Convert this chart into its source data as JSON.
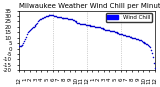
{
  "title": "Milwaukee Weather Wind Chill per Minute (24 Hours)",
  "background_color": "#ffffff",
  "plot_bg_color": "#ffffff",
  "line_color": "#0000cc",
  "legend_color": "#0000ff",
  "y_values": [
    2,
    2,
    2.5,
    3,
    3.5,
    5,
    7,
    9,
    11,
    13,
    15,
    16,
    17,
    18,
    19,
    19.5,
    20,
    21,
    22,
    23,
    24,
    25,
    26,
    27,
    27.5,
    28,
    28.5,
    29,
    29.5,
    29.8,
    30,
    30.2,
    30.5,
    30.5,
    30.5,
    30.5,
    30.5,
    30.5,
    30.2,
    30,
    29.8,
    29.5,
    29.5,
    29.3,
    29,
    28.8,
    28.5,
    28.5,
    28.3,
    28,
    28,
    28,
    27.8,
    27.5,
    27.5,
    27.3,
    27,
    27,
    26.5,
    26,
    25.5,
    25,
    24.5,
    24,
    23.8,
    23.5,
    23,
    23,
    22.8,
    22.5,
    22.5,
    22.3,
    22,
    21.8,
    21.5,
    21.5,
    21.3,
    21,
    21,
    20.8,
    20.5,
    20.5,
    20,
    20,
    20,
    20,
    19.5,
    19.5,
    19,
    18.5,
    18.5,
    18,
    17.8,
    17.5,
    17.5,
    17.3,
    17,
    16.8,
    16.5,
    16.5,
    16.3,
    16,
    15.8,
    15.5,
    15,
    14.8,
    14.5,
    14,
    13.8,
    13.5,
    13.3,
    13,
    12.8,
    12.5,
    12.5,
    12,
    11.8,
    11.5,
    11.3,
    11,
    10.8,
    10.5,
    10,
    9.8,
    9.5,
    9.3,
    9,
    8.8,
    8.5,
    8.2,
    8,
    7.5,
    7,
    6.5,
    6,
    5.5,
    5,
    4.5,
    4,
    3,
    2,
    1,
    -1,
    -4,
    -8,
    -13,
    -18
  ],
  "ylim": [
    -20,
    35
  ],
  "xlim": [
    0,
    1440
  ],
  "vline_positions": [
    360,
    720,
    1080
  ],
  "tick_fontsize": 4,
  "title_fontsize": 5,
  "marker_size": 1.2,
  "legend_label": "Wind Chill",
  "x_tick_labels": [
    "12",
    "1",
    "2",
    "3",
    "4",
    "5",
    "6",
    "7",
    "8",
    "9",
    "10",
    "11",
    "12",
    "1",
    "2",
    "3",
    "4",
    "5",
    "6",
    "7",
    "8",
    "9",
    "10",
    "11",
    "12"
  ]
}
